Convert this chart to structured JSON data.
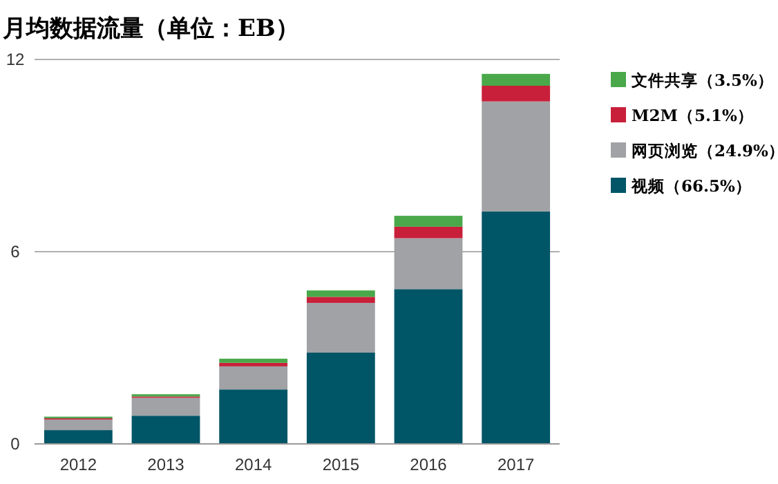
{
  "chart_data": {
    "type": "bar",
    "title": "月均数据流量（单位：EB）",
    "categories": [
      "2012",
      "2013",
      "2014",
      "2015",
      "2016",
      "2017"
    ],
    "stacked": true,
    "ylim": [
      0,
      12
    ],
    "yticks": [
      0,
      6,
      12
    ],
    "grid": "y",
    "legend": "top right",
    "series": [
      {
        "name": "视频（66.5%）",
        "color": "#005566",
        "values": [
          0.43,
          0.88,
          1.7,
          2.85,
          4.83,
          7.26
        ]
      },
      {
        "name": "网页浏览（24.9%）",
        "color": "#a0a2a5",
        "values": [
          0.33,
          0.56,
          0.72,
          1.55,
          1.59,
          3.43
        ]
      },
      {
        "name": "M2M（5.1%）",
        "color": "#c8203a",
        "values": [
          0.04,
          0.04,
          0.11,
          0.19,
          0.36,
          0.49
        ]
      },
      {
        "name": "文件共享（3.5%）",
        "color": "#4aa84a",
        "values": [
          0.05,
          0.07,
          0.13,
          0.2,
          0.34,
          0.37
        ]
      }
    ]
  }
}
